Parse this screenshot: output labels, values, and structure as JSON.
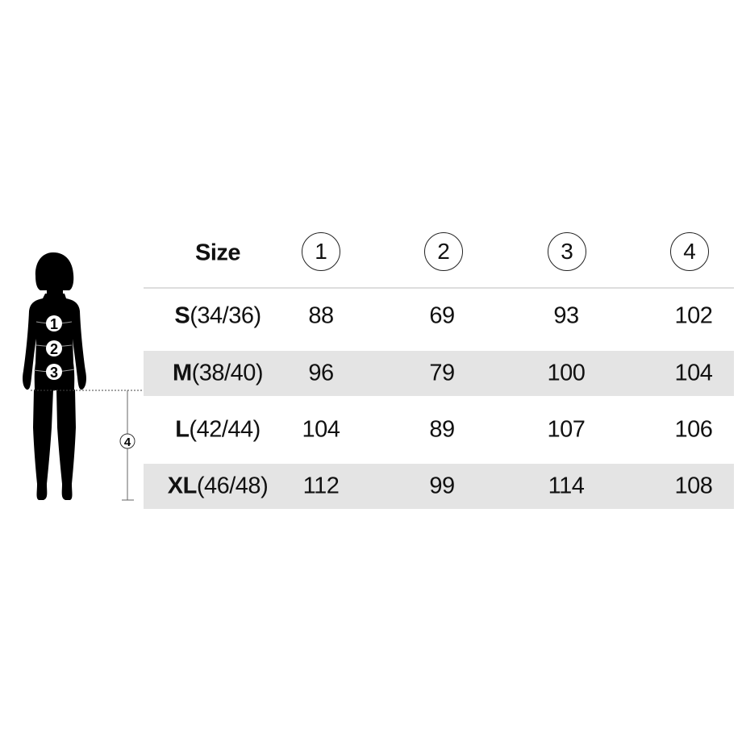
{
  "table": {
    "header": {
      "size_label": "Size",
      "columns": [
        "1",
        "2",
        "3",
        "4"
      ]
    },
    "rows": [
      {
        "letter": "S",
        "range": "(34/36)",
        "values": [
          "88",
          "69",
          "93",
          "102"
        ],
        "shaded": false
      },
      {
        "letter": "M",
        "range": "(38/40)",
        "values": [
          "96",
          "79",
          "100",
          "104"
        ],
        "shaded": true
      },
      {
        "letter": "L",
        "range": "(42/44)",
        "values": [
          "104",
          "89",
          "107",
          "106"
        ],
        "shaded": false
      },
      {
        "letter": "XL",
        "range": "(46/48)",
        "values": [
          "112",
          "99",
          "114",
          "108"
        ],
        "shaded": true
      }
    ]
  },
  "figure": {
    "markers": [
      "1",
      "2",
      "3"
    ],
    "length_marker": "4"
  },
  "colors": {
    "band": "#e4e4e4",
    "silhouette": "#000000",
    "divider": "#dddddd"
  }
}
